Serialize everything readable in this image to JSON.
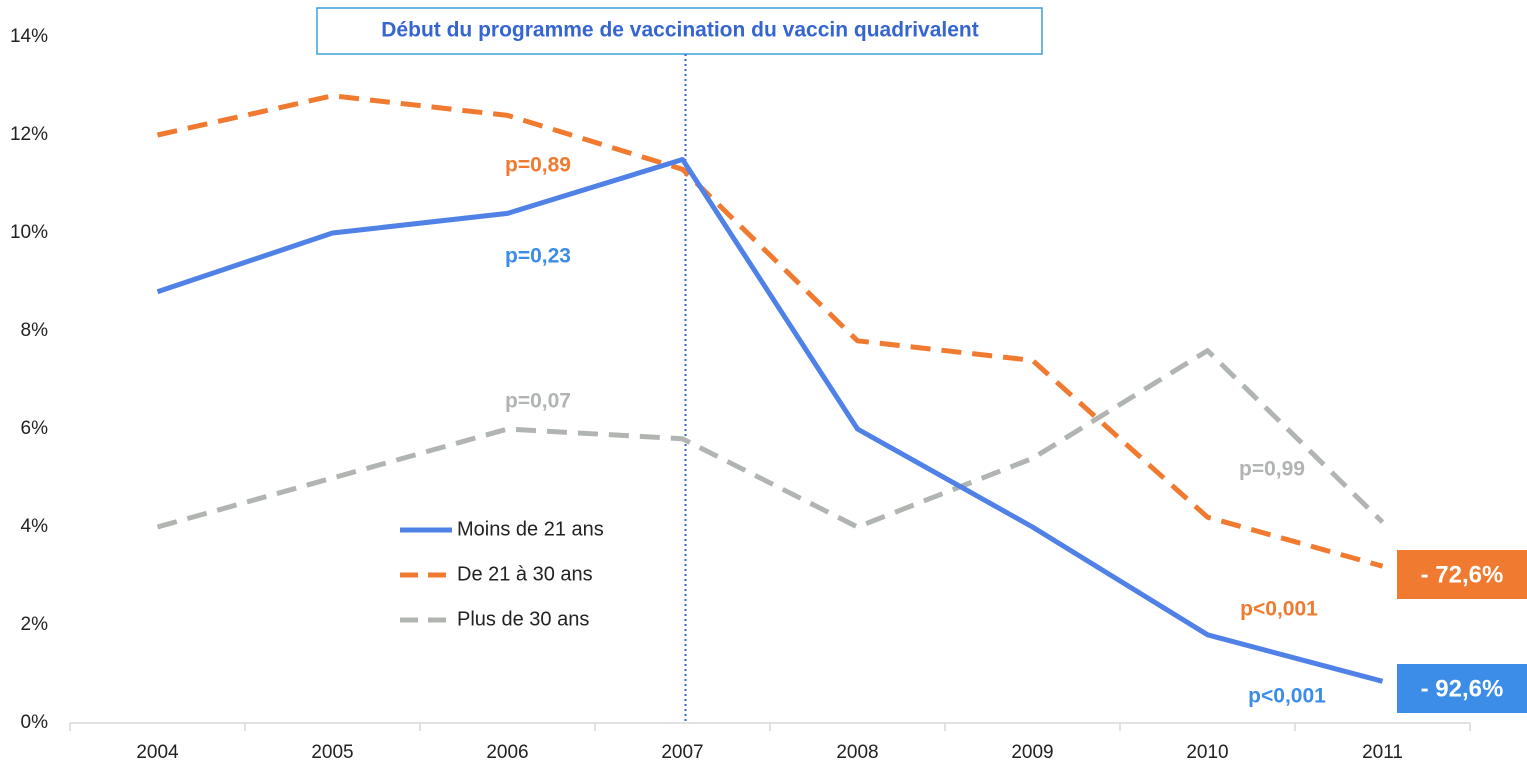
{
  "chart_data": {
    "type": "line",
    "categories": [
      "2004",
      "2005",
      "2006",
      "2007",
      "2008",
      "2009",
      "2010",
      "2011"
    ],
    "series": [
      {
        "name": "Moins de 21 ans",
        "color": "#4f81e6",
        "dash": "solid",
        "values": [
          8.8,
          10.0,
          10.4,
          11.5,
          6.0,
          4.0,
          1.8,
          0.85
        ]
      },
      {
        "name": "De 21 à 30 ans",
        "color": "#f07a30",
        "dash": "dashed",
        "values": [
          12.0,
          12.8,
          12.4,
          11.3,
          7.8,
          7.4,
          4.2,
          3.2
        ]
      },
      {
        "name": "Plus de 30 ans",
        "color": "#b1b5b1",
        "dash": "dashed",
        "values": [
          4.0,
          5.0,
          6.0,
          5.8,
          4.0,
          5.4,
          7.6,
          4.1
        ]
      }
    ],
    "ylim": [
      0,
      14
    ],
    "yticks": [
      {
        "value": 0,
        "label": "0%"
      },
      {
        "value": 2,
        "label": "2%"
      },
      {
        "value": 4,
        "label": "4%"
      },
      {
        "value": 6,
        "label": "6%"
      },
      {
        "value": 8,
        "label": "8%"
      },
      {
        "value": 10,
        "label": "10%"
      },
      {
        "value": 12,
        "label": "12%"
      },
      {
        "value": 14,
        "label": "14%"
      }
    ],
    "vline_label": "Début du programme de vaccination du vaccin quadrivalent",
    "annotations": [
      {
        "text": "p=0,89",
        "color": "#f07a30"
      },
      {
        "text": "p=0,23",
        "color": "#3b8de8"
      },
      {
        "text": "p=0,07",
        "color": "#b1b5b1"
      },
      {
        "text": "p=0,99",
        "color": "#b1b5b1"
      },
      {
        "text": "p<0,001",
        "color": "#f07a30"
      },
      {
        "text": "p<0,001",
        "color": "#3b8de8"
      }
    ],
    "badges": [
      {
        "text": "- 72,6%",
        "color": "#f07a30"
      },
      {
        "text": "- 92,6%",
        "color": "#3b8de8"
      }
    ]
  }
}
